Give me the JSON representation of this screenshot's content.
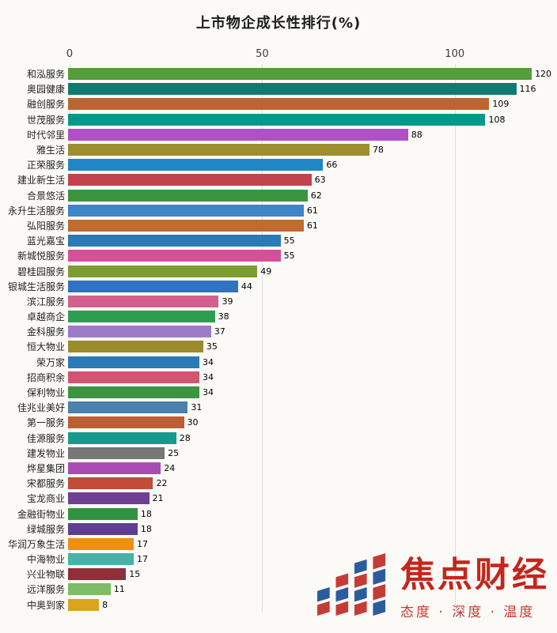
{
  "title": "上市物企成长性排行(%)",
  "chart_data": {
    "type": "bar",
    "orientation": "horizontal",
    "title": "上市物企成长性排行(%)",
    "categories": [
      "和泓服务",
      "奥园健康",
      "融创服务",
      "世茂服务",
      "时代邻里",
      "雅生活",
      "正荣服务",
      "建业新生活",
      "合景悠活",
      "永升生活服务",
      "弘阳服务",
      "蓝光嘉宝",
      "新城悦服务",
      "碧桂园服务",
      "银城生活服务",
      "滨江服务",
      "卓越商企",
      "金科服务",
      "恒大物业",
      "荣万家",
      "招商积余",
      "保利物业",
      "佳兆业美好",
      "第一服务",
      "佳源服务",
      "建发物业",
      "烨星集团",
      "宋都服务",
      "宝龙商业",
      "金融街物业",
      "绿城服务",
      "华润万象生活",
      "中海物业",
      "兴业物联",
      "远洋服务",
      "中奥到家"
    ],
    "values": [
      120,
      116,
      109,
      108,
      88,
      78,
      66,
      63,
      62,
      61,
      61,
      55,
      55,
      49,
      44,
      39,
      38,
      37,
      35,
      34,
      34,
      34,
      31,
      30,
      28,
      25,
      24,
      22,
      21,
      18,
      18,
      17,
      17,
      15,
      11,
      8
    ],
    "colors": [
      "#559e3b",
      "#0f7b6f",
      "#bd6531",
      "#00998c",
      "#b050c8",
      "#9e8d2f",
      "#2186c7",
      "#c2434f",
      "#3c9440",
      "#3e85c9",
      "#c06b2f",
      "#2a7ab5",
      "#d65097",
      "#7d9c31",
      "#3272c2",
      "#d2608f",
      "#2d9e51",
      "#9d7bc8",
      "#9a8b2f",
      "#2a7ab5",
      "#d25573",
      "#3c9440",
      "#4b81ad",
      "#bb5f35",
      "#169a8d",
      "#777777",
      "#ab4cb4",
      "#c24b3a",
      "#6e3f93",
      "#2f9240",
      "#5f3d90",
      "#ef8f0e",
      "#46b2a8",
      "#8f3039",
      "#7cbd68",
      "#d9a41e"
    ],
    "ticks": [
      0,
      50,
      100
    ],
    "xlim": [
      0,
      120.6
    ],
    "xlabel": "",
    "ylabel": "",
    "grid": "vertical-light"
  },
  "watermark": {
    "brand": "焦点财经",
    "tagline": "态度 · 深度 · 温度",
    "brand_color": "#c5251c",
    "logo_blue": "#2d5c9e",
    "logo_red": "#c43c38"
  }
}
